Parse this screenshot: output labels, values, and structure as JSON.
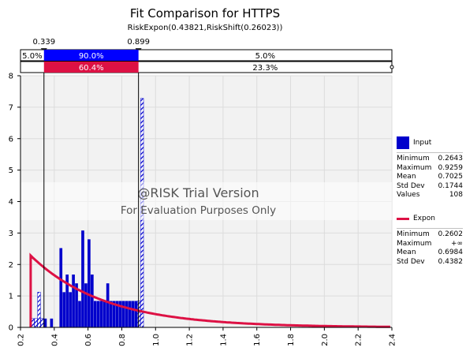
{
  "chart_data": {
    "type": "bar",
    "title": "Fit Comparison for HTTPS",
    "subtitle": "RiskExpon(0.43821,RiskShift(0.26023))",
    "xlim": [
      0.2,
      2.4
    ],
    "ylim": [
      0,
      8
    ],
    "xticks": [
      "0.2",
      "0.4",
      "0.6",
      "0.8",
      "1.0",
      "1.2",
      "1.4",
      "1.6",
      "1.8",
      "2.0",
      "2.2",
      "2.4"
    ],
    "yticks": [
      "0",
      "1",
      "2",
      "3",
      "4",
      "5",
      "6",
      "7",
      "8"
    ],
    "delimiters": [
      {
        "label": "0.339",
        "x": 0.339
      },
      {
        "label": "0.899",
        "x": 0.899
      }
    ],
    "band_top": [
      "5.0%",
      "90.0%",
      "5.0%"
    ],
    "band_bottom": [
      "",
      "60.4%",
      "23.3%"
    ],
    "histogram": {
      "bin_width": 0.0185,
      "bins": [
        {
          "x": 0.2643,
          "h": 0.28
        },
        {
          "x": 0.2828,
          "h": 0.28
        },
        {
          "x": 0.3013,
          "h": 1.12
        },
        {
          "x": 0.3198,
          "h": 0.28
        },
        {
          "x": 0.3383,
          "h": 0.28
        },
        {
          "x": 0.3568,
          "h": 0.0
        },
        {
          "x": 0.3753,
          "h": 0.28
        },
        {
          "x": 0.3938,
          "h": 0.0
        },
        {
          "x": 0.4123,
          "h": 0.0
        },
        {
          "x": 0.4308,
          "h": 2.52
        },
        {
          "x": 0.4493,
          "h": 1.12
        },
        {
          "x": 0.4678,
          "h": 1.68
        },
        {
          "x": 0.4863,
          "h": 1.12
        },
        {
          "x": 0.5048,
          "h": 1.68
        },
        {
          "x": 0.5233,
          "h": 1.4
        },
        {
          "x": 0.5418,
          "h": 0.84
        },
        {
          "x": 0.5603,
          "h": 3.08
        },
        {
          "x": 0.5788,
          "h": 1.4
        },
        {
          "x": 0.5973,
          "h": 2.8
        },
        {
          "x": 0.6158,
          "h": 1.68
        },
        {
          "x": 0.6343,
          "h": 0.84
        },
        {
          "x": 0.6528,
          "h": 0.84
        },
        {
          "x": 0.6713,
          "h": 0.84
        },
        {
          "x": 0.6898,
          "h": 0.84
        },
        {
          "x": 0.7083,
          "h": 1.4
        },
        {
          "x": 0.7268,
          "h": 0.84
        },
        {
          "x": 0.7453,
          "h": 0.84
        },
        {
          "x": 0.7638,
          "h": 0.84
        },
        {
          "x": 0.7823,
          "h": 0.84
        },
        {
          "x": 0.8008,
          "h": 0.84
        },
        {
          "x": 0.8193,
          "h": 0.84
        },
        {
          "x": 0.8378,
          "h": 0.84
        },
        {
          "x": 0.8563,
          "h": 0.84
        },
        {
          "x": 0.8748,
          "h": 0.84
        },
        {
          "x": 0.8933,
          "h": 0.84
        },
        {
          "x": 0.9118,
          "h": 7.28
        }
      ]
    },
    "fit_curve": {
      "name": "Expon",
      "shift": 0.26023,
      "beta": 0.43821,
      "x_end": 2.4
    },
    "watermark": [
      "@RISK Trial Version",
      "For Evaluation Purposes Only"
    ],
    "legend": [
      {
        "name": "Input",
        "color": "#0000cc",
        "stats": [
          [
            "Minimum",
            "0.2643"
          ],
          [
            "Maximum",
            "0.9259"
          ],
          [
            "Mean",
            "0.7025"
          ],
          [
            "Std Dev",
            "0.1744"
          ],
          [
            "Values",
            "108"
          ]
        ]
      },
      {
        "name": "Expon",
        "color": "#dd1144",
        "stats": [
          [
            "Minimum",
            "0.2602"
          ],
          [
            "Maximum",
            "+∞"
          ],
          [
            "Mean",
            "0.6984"
          ],
          [
            "Std Dev",
            "0.4382"
          ]
        ]
      }
    ],
    "grid": true,
    "legend_placement": "right"
  }
}
